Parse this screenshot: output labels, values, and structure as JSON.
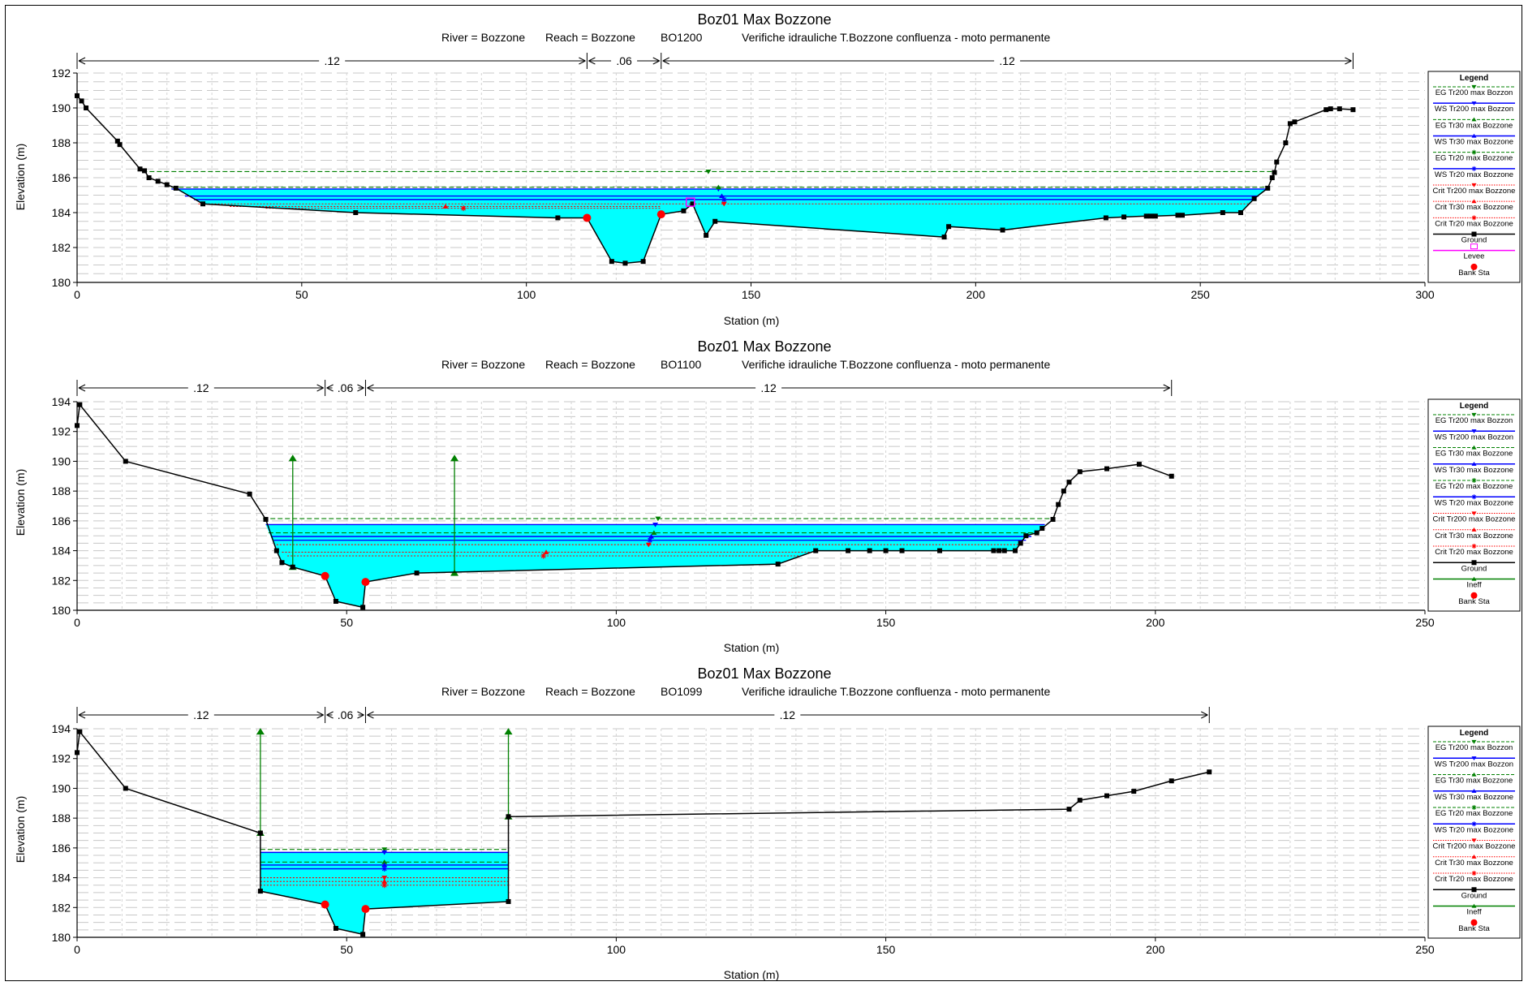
{
  "charts": [
    {
      "title": "Boz01 Max Bozzone",
      "river_label": "River = Bozzone",
      "reach_label": "Reach = Bozzone",
      "section_id": "BO1200",
      "description": "Verifiche idrauliche T.Bozzone confluenza - moto permanente",
      "xlabel": "Station (m)",
      "ylabel": "Elevation (m)",
      "legend_title": "Legend",
      "legend": [
        {
          "label": "EG Tr200 max Bozzon",
          "color": "#008000",
          "line": "dashed",
          "marker": "tri-down"
        },
        {
          "label": "WS Tr200 max Bozzon",
          "color": "#0000ff",
          "line": "solid",
          "marker": "tri-down"
        },
        {
          "label": "EG Tr30 max Bozzone",
          "color": "#008000",
          "line": "dashed",
          "marker": "tri-up"
        },
        {
          "label": "WS Tr30 max Bozzone",
          "color": "#0000ff",
          "line": "solid",
          "marker": "tri-up"
        },
        {
          "label": "EG Tr20 max Bozzone",
          "color": "#008000",
          "line": "dashed",
          "marker": "star"
        },
        {
          "label": "WS Tr20 max Bozzone",
          "color": "#0000ff",
          "line": "solid",
          "marker": "star"
        },
        {
          "label": "Crit Tr200 max Bozzone",
          "color": "#ff0000",
          "line": "dotted",
          "marker": "tri-down"
        },
        {
          "label": "Crit Tr30 max Bozzone",
          "color": "#ff0000",
          "line": "dotted",
          "marker": "tri-up"
        },
        {
          "label": "Crit Tr20 max Bozzone",
          "color": "#ff0000",
          "line": "dotted",
          "marker": "star"
        },
        {
          "label": "Ground",
          "color": "#000000",
          "line": "solid",
          "marker": "square"
        },
        {
          "label": "Levee",
          "color": "#ff00ff",
          "line": "solid",
          "marker": "levee"
        },
        {
          "label": "Bank Sta",
          "color": "#ff0000",
          "line": "none",
          "marker": "circle"
        }
      ]
    },
    {
      "title": "Boz01 Max Bozzone",
      "river_label": "River = Bozzone",
      "reach_label": "Reach = Bozzone",
      "section_id": "BO1100",
      "description": "Verifiche idrauliche T.Bozzone confluenza - moto permanente",
      "xlabel": "Station (m)",
      "ylabel": "Elevation (m)",
      "legend_title": "Legend",
      "legend": [
        {
          "label": "EG Tr200 max Bozzon",
          "color": "#008000",
          "line": "dashed",
          "marker": "tri-down"
        },
        {
          "label": "WS Tr200 max Bozzon",
          "color": "#0000ff",
          "line": "solid",
          "marker": "tri-down"
        },
        {
          "label": "EG Tr30 max Bozzone",
          "color": "#008000",
          "line": "dashed",
          "marker": "tri-up"
        },
        {
          "label": "WS Tr30 max Bozzone",
          "color": "#0000ff",
          "line": "solid",
          "marker": "tri-up"
        },
        {
          "label": "EG Tr20 max Bozzone",
          "color": "#008000",
          "line": "dashed",
          "marker": "star"
        },
        {
          "label": "WS Tr20 max Bozzone",
          "color": "#0000ff",
          "line": "solid",
          "marker": "star"
        },
        {
          "label": "Crit Tr200 max Bozzone",
          "color": "#ff0000",
          "line": "dotted",
          "marker": "tri-down"
        },
        {
          "label": "Crit Tr30 max Bozzone",
          "color": "#ff0000",
          "line": "dotted",
          "marker": "tri-up"
        },
        {
          "label": "Crit Tr20 max Bozzone",
          "color": "#ff0000",
          "line": "dotted",
          "marker": "star"
        },
        {
          "label": "Ground",
          "color": "#000000",
          "line": "solid",
          "marker": "square"
        },
        {
          "label": "Ineff",
          "color": "#008000",
          "line": "solid",
          "marker": "tri-up"
        },
        {
          "label": "Bank Sta",
          "color": "#ff0000",
          "line": "none",
          "marker": "circle"
        }
      ]
    },
    {
      "title": "Boz01 Max Bozzone",
      "river_label": "River = Bozzone",
      "reach_label": "Reach = Bozzone",
      "section_id": "BO1099",
      "description": "Verifiche idrauliche T.Bozzone confluenza - moto permanente",
      "xlabel": "Station (m)",
      "ylabel": "Elevation (m)",
      "legend_title": "Legend",
      "legend": [
        {
          "label": "EG Tr200 max Bozzon",
          "color": "#008000",
          "line": "dashed",
          "marker": "tri-down"
        },
        {
          "label": "WS Tr200 max Bozzon",
          "color": "#0000ff",
          "line": "solid",
          "marker": "tri-down"
        },
        {
          "label": "EG Tr30 max Bozzone",
          "color": "#008000",
          "line": "dashed",
          "marker": "tri-up"
        },
        {
          "label": "WS Tr30 max Bozzone",
          "color": "#0000ff",
          "line": "solid",
          "marker": "tri-up"
        },
        {
          "label": "EG Tr20 max Bozzone",
          "color": "#008000",
          "line": "dashed",
          "marker": "star"
        },
        {
          "label": "WS Tr20 max Bozzone",
          "color": "#0000ff",
          "line": "solid",
          "marker": "star"
        },
        {
          "label": "Crit Tr200 max Bozzone",
          "color": "#ff0000",
          "line": "dotted",
          "marker": "tri-down"
        },
        {
          "label": "Crit Tr30 max Bozzone",
          "color": "#ff0000",
          "line": "dotted",
          "marker": "tri-up"
        },
        {
          "label": "Crit Tr20 max Bozzone",
          "color": "#ff0000",
          "line": "dotted",
          "marker": "star"
        },
        {
          "label": "Ground",
          "color": "#000000",
          "line": "solid",
          "marker": "square"
        },
        {
          "label": "Ineff",
          "color": "#008000",
          "line": "solid",
          "marker": "tri-up"
        },
        {
          "label": "Bank Sta",
          "color": "#ff0000",
          "line": "none",
          "marker": "circle"
        }
      ]
    }
  ],
  "chart_data": [
    {
      "type": "line",
      "title": "Boz01 Max Bozzone",
      "section": "BO1200",
      "xlabel": "Station (m)",
      "ylabel": "Elevation (m)",
      "xlim": [
        0,
        300
      ],
      "ylim": [
        180,
        192
      ],
      "xticks": [
        0,
        50,
        100,
        150,
        200,
        250,
        300
      ],
      "yticks": [
        180,
        182,
        184,
        186,
        188,
        190,
        192
      ],
      "grid": true,
      "legend_position": "right",
      "manning": [
        {
          "from": 0,
          "to": 113.5,
          "label": ".12"
        },
        {
          "from": 113.5,
          "to": 130,
          "label": ".06"
        },
        {
          "from": 130,
          "to": 284,
          "label": ".12"
        }
      ],
      "ground": [
        [
          0,
          190.7
        ],
        [
          1,
          190.4
        ],
        [
          2,
          190
        ],
        [
          9,
          188.1
        ],
        [
          9.5,
          187.9
        ],
        [
          14,
          186.5
        ],
        [
          15,
          186.4
        ],
        [
          16,
          186
        ],
        [
          18,
          185.8
        ],
        [
          20,
          185.6
        ],
        [
          22,
          185.4
        ],
        [
          28,
          184.5
        ],
        [
          62,
          184
        ],
        [
          107,
          183.7
        ],
        [
          113.5,
          183.7
        ],
        [
          119,
          181.2
        ],
        [
          122,
          181.1
        ],
        [
          126,
          181.2
        ],
        [
          130,
          183.9
        ],
        [
          135,
          184.1
        ],
        [
          137,
          184.5
        ],
        [
          140,
          182.7
        ],
        [
          142,
          183.5
        ],
        [
          193,
          182.6
        ],
        [
          194,
          183.2
        ],
        [
          206,
          183
        ],
        [
          229,
          183.7
        ],
        [
          233,
          183.75
        ],
        [
          238,
          183.8
        ],
        [
          239,
          183.8
        ],
        [
          240,
          183.8
        ],
        [
          245,
          183.85
        ],
        [
          246,
          183.85
        ],
        [
          255,
          184
        ],
        [
          259,
          184
        ],
        [
          262,
          184.8
        ],
        [
          265,
          185.4
        ],
        [
          266,
          186
        ],
        [
          266.5,
          186.3
        ],
        [
          267,
          186.9
        ],
        [
          269,
          188
        ],
        [
          270,
          189.1
        ],
        [
          271,
          189.2
        ],
        [
          278,
          189.9
        ],
        [
          279,
          189.95
        ],
        [
          281,
          189.95
        ],
        [
          284,
          189.9
        ]
      ],
      "bank_stations": [
        [
          113.5,
          183.7
        ],
        [
          130,
          183.9
        ]
      ],
      "levee": [
        [
          136.5,
          184.6
        ]
      ],
      "water": [
        {
          "name": "EG Tr200 max Bozzon",
          "elevation": 186.35,
          "from": 14.5,
          "to": 266.5
        },
        {
          "name": "WS Tr200 max Bozzon",
          "elevation": 185.35,
          "from": 21,
          "to": 264.5
        },
        {
          "name": "EG Tr30 max Bozzone",
          "elevation": 185.45,
          "from": 21,
          "to": 264.5
        },
        {
          "name": "WS Tr30 max Bozzone",
          "elevation": 184.95,
          "from": 24,
          "to": 263
        },
        {
          "name": "WS Tr20 max Bozzone",
          "elevation": 184.75,
          "from": 26,
          "to": 262
        },
        {
          "name": "Crit Tr200 max Bozzone",
          "elevation": 184.5,
          "from": 27,
          "to": 261
        },
        {
          "name": "Crit Tr30 max Bozzone",
          "elevation": 184.35,
          "from": 34,
          "to": 130
        },
        {
          "name": "Crit Tr20 max Bozzone",
          "elevation": 184.25,
          "from": 42,
          "to": 130
        }
      ],
      "ineffective": []
    },
    {
      "type": "line",
      "title": "Boz01 Max Bozzone",
      "section": "BO1100",
      "xlabel": "Station (m)",
      "ylabel": "Elevation (m)",
      "xlim": [
        0,
        250
      ],
      "ylim": [
        180,
        194
      ],
      "xticks": [
        0,
        50,
        100,
        150,
        200,
        250
      ],
      "yticks": [
        180,
        182,
        184,
        186,
        188,
        190,
        192,
        194
      ],
      "grid": true,
      "legend_position": "right",
      "manning": [
        {
          "from": 0,
          "to": 46,
          "label": ".12"
        },
        {
          "from": 46,
          "to": 53.5,
          "label": ".06"
        },
        {
          "from": 53.5,
          "to": 203,
          "label": ".12"
        }
      ],
      "ground": [
        [
          0,
          192.4
        ],
        [
          0.5,
          193.8
        ],
        [
          9,
          190
        ],
        [
          32,
          187.8
        ],
        [
          35,
          186.1
        ],
        [
          37,
          184
        ],
        [
          38,
          183.2
        ],
        [
          40,
          182.9
        ],
        [
          46,
          182.3
        ],
        [
          48,
          180.6
        ],
        [
          53,
          180.2
        ],
        [
          53.5,
          181.9
        ],
        [
          63,
          182.5
        ],
        [
          130,
          183.1
        ],
        [
          137,
          184
        ],
        [
          143,
          184
        ],
        [
          147,
          184
        ],
        [
          150,
          184
        ],
        [
          153,
          184
        ],
        [
          160,
          184
        ],
        [
          170,
          184
        ],
        [
          171,
          184
        ],
        [
          172,
          184
        ],
        [
          174,
          184
        ],
        [
          175,
          184.5
        ],
        [
          176,
          185
        ],
        [
          178,
          185.2
        ],
        [
          179,
          185.5
        ],
        [
          181,
          186.1
        ],
        [
          182,
          187.1
        ],
        [
          183,
          188
        ],
        [
          184,
          188.6
        ],
        [
          186,
          189.3
        ],
        [
          191,
          189.5
        ],
        [
          197,
          189.8
        ],
        [
          203,
          189
        ]
      ],
      "bank_stations": [
        [
          46,
          182.3
        ],
        [
          53.5,
          181.9
        ]
      ],
      "levee": [],
      "water": [
        {
          "name": "EG Tr200 max Bozzon",
          "elevation": 186.15,
          "from": 34.5,
          "to": 181
        },
        {
          "name": "WS Tr200 max Bozzon",
          "elevation": 185.75,
          "from": 35,
          "to": 179.5
        },
        {
          "name": "EG Tr30 max Bozzone",
          "elevation": 185.2,
          "from": 35.5,
          "to": 178.5
        },
        {
          "name": "WS Tr30 max Bozzone",
          "elevation": 184.95,
          "from": 36,
          "to": 177
        },
        {
          "name": "WS Tr20 max Bozzone",
          "elevation": 184.7,
          "from": 36.5,
          "to": 176
        },
        {
          "name": "Crit Tr200 max Bozzone",
          "elevation": 184.4,
          "from": 37,
          "to": 175
        },
        {
          "name": "Crit Tr30 max Bozzone",
          "elevation": 183.9,
          "from": 38,
          "to": 136
        },
        {
          "name": "Crit Tr20 max Bozzone",
          "elevation": 183.65,
          "from": 39,
          "to": 134
        }
      ],
      "ineffective": [
        {
          "station": 40,
          "bottom": 182.9,
          "top": 190.2
        },
        {
          "station": 70,
          "bottom": 182.5,
          "top": 190.2
        }
      ]
    },
    {
      "type": "line",
      "title": "Boz01 Max Bozzone",
      "section": "BO1099",
      "xlabel": "Station (m)",
      "ylabel": "Elevation (m)",
      "xlim": [
        0,
        250
      ],
      "ylim": [
        180,
        194
      ],
      "xticks": [
        0,
        50,
        100,
        150,
        200,
        250
      ],
      "yticks": [
        180,
        182,
        184,
        186,
        188,
        190,
        192,
        194
      ],
      "grid": true,
      "legend_position": "right",
      "manning": [
        {
          "from": 0,
          "to": 46,
          "label": ".12"
        },
        {
          "from": 46,
          "to": 53.5,
          "label": ".06"
        },
        {
          "from": 53.5,
          "to": 210,
          "label": ".12"
        }
      ],
      "ground": [
        [
          0,
          192.4
        ],
        [
          0.5,
          193.8
        ],
        [
          9,
          190
        ],
        [
          34,
          187
        ],
        [
          34,
          183.1
        ],
        [
          46,
          182.2
        ],
        [
          48,
          180.6
        ],
        [
          53,
          180.2
        ],
        [
          53.5,
          181.9
        ],
        [
          80,
          182.4
        ],
        [
          80,
          188.1
        ],
        [
          184,
          188.6
        ],
        [
          186,
          189.2
        ],
        [
          191,
          189.5
        ],
        [
          196,
          189.8
        ],
        [
          203,
          190.5
        ],
        [
          210,
          191.1
        ]
      ],
      "bank_stations": [
        [
          46,
          182.2
        ],
        [
          53.5,
          181.9
        ]
      ],
      "levee": [],
      "water": [
        {
          "name": "EG Tr200 max Bozzon",
          "elevation": 185.9,
          "from": 34,
          "to": 80
        },
        {
          "name": "WS Tr200 max Bozzon",
          "elevation": 185.7,
          "from": 34,
          "to": 80
        },
        {
          "name": "EG Tr30 max Bozzone",
          "elevation": 185.05,
          "from": 34,
          "to": 80
        },
        {
          "name": "WS Tr30 max Bozzone",
          "elevation": 184.85,
          "from": 34,
          "to": 80
        },
        {
          "name": "WS Tr20 max Bozzone",
          "elevation": 184.6,
          "from": 34,
          "to": 80
        },
        {
          "name": "Crit Tr200 max Bozzone",
          "elevation": 184.0,
          "from": 34,
          "to": 80
        },
        {
          "name": "Crit Tr30 max Bozzone",
          "elevation": 183.75,
          "from": 34,
          "to": 80
        },
        {
          "name": "Crit Tr20 max Bozzone",
          "elevation": 183.5,
          "from": 34,
          "to": 80
        }
      ],
      "ineffective": [
        {
          "station": 34,
          "bottom": 187,
          "top": 193.8
        },
        {
          "station": 80,
          "bottom": 188.1,
          "top": 193.8
        }
      ]
    }
  ]
}
